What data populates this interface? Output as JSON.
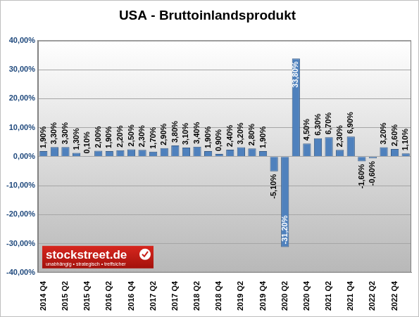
{
  "chart_data": {
    "type": "bar",
    "title": "USA - Bruttoinlandsprodukt",
    "categories": [
      "2014 Q4",
      null,
      "2015 Q2",
      null,
      "2015 Q4",
      null,
      "2016 Q2",
      null,
      "2016 Q4",
      null,
      "2017 Q2",
      null,
      "2017 Q4",
      null,
      "2018 Q2",
      null,
      "2018 Q4",
      null,
      "2019 Q2",
      null,
      "2019 Q4",
      null,
      "2020 Q2",
      null,
      "2020 Q4",
      null,
      "2021 Q2",
      null,
      "2021 Q4",
      null,
      "2022 Q2",
      null,
      "2022 Q4",
      null
    ],
    "values": [
      1.9,
      3.3,
      3.3,
      1.3,
      0.1,
      2.0,
      1.9,
      2.2,
      2.5,
      2.3,
      1.7,
      2.9,
      3.8,
      3.1,
      3.4,
      1.9,
      0.9,
      2.4,
      3.2,
      2.8,
      1.9,
      -5.1,
      -31.2,
      33.8,
      4.5,
      6.3,
      6.7,
      2.3,
      6.9,
      -1.6,
      -0.6,
      3.2,
      2.6,
      1.1
    ],
    "value_labels": [
      "1,90%",
      "3,30%",
      "3,30%",
      "1,30%",
      "0,10%",
      "2,00%",
      "1,90%",
      "2,20%",
      "2,50%",
      "2,30%",
      "1,70%",
      "2,90%",
      "3,80%",
      "3,10%",
      "3,40%",
      "1,90%",
      "0,90%",
      "2,40%",
      "3,20%",
      "2,80%",
      "1,90%",
      "-5,10%",
      "-31,20%",
      "33,80%",
      "4,50%",
      "6,30%",
      "6,70%",
      "2,30%",
      "6,90%",
      "-1,60%",
      "-0,60%",
      "3,20%",
      "2,60%",
      "1,10%"
    ],
    "color": "#4f81bd",
    "ylim": [
      -40,
      40
    ],
    "yticks": [
      {
        "value": -40,
        "label": "-40,00%"
      },
      {
        "value": -30,
        "label": "-30,00%"
      },
      {
        "value": -20,
        "label": "-20,00%"
      },
      {
        "value": -10,
        "label": "-10,00%"
      },
      {
        "value": 0,
        "label": "0,00%"
      },
      {
        "value": 10,
        "label": "10,00%"
      },
      {
        "value": 20,
        "label": "20,00%"
      },
      {
        "value": 30,
        "label": "30,00%"
      },
      {
        "value": 40,
        "label": "40,00%"
      }
    ],
    "grid": true,
    "data_labels": true,
    "annotations": [
      "stockstreet.de",
      "unabhängig • strategisch • treffsicher"
    ]
  }
}
